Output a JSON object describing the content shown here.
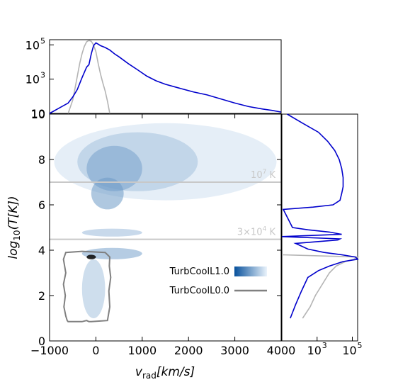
{
  "chart_data": [
    {
      "panel": "main",
      "type": "heatmap",
      "xlabel": "v_rad[km/s]",
      "ylabel": "log10(T[K])",
      "xlim": [
        -1000,
        4000
      ],
      "ylim": [
        0,
        10
      ],
      "xticks": [
        -1000,
        0,
        1000,
        2000,
        3000,
        4000
      ],
      "yticks": [
        0,
        2,
        4,
        6,
        8,
        10
      ],
      "xtick_labels": [
        "−1000",
        "0",
        "1000",
        "2000",
        "3000",
        "4000"
      ],
      "ytick_labels": [
        "0",
        "2",
        "4",
        "6",
        "8",
        "10"
      ],
      "reference_lines": [
        {
          "y": 7.0,
          "label_base": "10",
          "label_exp": "7",
          "label_unit": "K"
        },
        {
          "y": 4.48,
          "label_base": "3×10",
          "label_exp": "4",
          "label_unit": "K"
        }
      ],
      "density_regions": [
        {
          "x0": -900,
          "x1": 3900,
          "y0": 6.2,
          "y1": 9.6,
          "level": 0.12
        },
        {
          "x0": -400,
          "x1": 2200,
          "y0": 6.6,
          "y1": 9.2,
          "level": 0.3
        },
        {
          "x0": -200,
          "x1": 1000,
          "y0": 6.6,
          "y1": 8.6,
          "level": 0.5
        },
        {
          "x0": -100,
          "x1": 600,
          "y0": 5.8,
          "y1": 7.2,
          "level": 0.55
        },
        {
          "x0": -300,
          "x1": 1000,
          "y0": 4.6,
          "y1": 4.95,
          "level": 0.35
        },
        {
          "x0": -300,
          "x1": 1000,
          "y0": 3.6,
          "y1": 4.1,
          "level": 0.5
        },
        {
          "x0": -300,
          "x1": 200,
          "y0": 1.0,
          "y1": 3.6,
          "level": 0.3
        },
        {
          "x0": -200,
          "x1": 0,
          "y0": 3.6,
          "y1": 3.8,
          "level": 1.0
        }
      ],
      "contour": {
        "series": "TurbCoolL0.0",
        "color": "#808080",
        "x": [
          -700,
          -650,
          -700,
          -660,
          -690,
          -650,
          -620,
          -600,
          -300,
          -200,
          -150,
          -100,
          250,
          300,
          280,
          320,
          290,
          300,
          250,
          200,
          -300,
          -650,
          -700
        ],
        "y": [
          3.6,
          3.0,
          2.5,
          2.0,
          1.5,
          1.1,
          0.9,
          0.85,
          0.85,
          0.9,
          0.85,
          0.85,
          0.9,
          1.5,
          2.2,
          2.8,
          3.3,
          3.7,
          3.8,
          3.9,
          3.95,
          3.9,
          3.6
        ]
      },
      "legend": {
        "placement": "lower-right",
        "entries": [
          {
            "label": "TurbCoolL1.0",
            "kind": "colormap",
            "colors": [
              "#08519c",
              "#eaf3fb"
            ]
          },
          {
            "label": "TurbCoolL0.0",
            "kind": "line",
            "color": "#808080"
          }
        ]
      }
    },
    {
      "panel": "top",
      "type": "line",
      "scale": "log",
      "ylim": [
        10,
        200000
      ],
      "yticks": [
        10,
        1000,
        100000
      ],
      "ytick_labels": [
        {
          "base": "10",
          "exp": ""
        },
        {
          "base": "10",
          "exp": "3"
        },
        {
          "base": "10",
          "exp": "5"
        }
      ],
      "xlim": [
        -1000,
        4000
      ],
      "series": [
        {
          "name": "TurbCoolL1.0",
          "color": "#0000cc",
          "x": [
            -1000,
            -800,
            -600,
            -500,
            -400,
            -300,
            -200,
            -150,
            -100,
            -50,
            0,
            50,
            100,
            200,
            300,
            400,
            500,
            700,
            900,
            1100,
            1300,
            1500,
            1800,
            2100,
            2400,
            2700,
            3000,
            3300,
            3600,
            3800,
            4000
          ],
          "y": [
            10,
            20,
            40,
            90,
            250,
            1200,
            5000,
            7000,
            30000,
            90000,
            130000,
            110000,
            90000,
            70000,
            50000,
            30000,
            20000,
            8000,
            3500,
            1500,
            800,
            500,
            300,
            180,
            120,
            70,
            40,
            25,
            18,
            15,
            12
          ]
        },
        {
          "name": "TurbCoolL0.0",
          "color": "#b4b4b4",
          "x": [
            -600,
            -500,
            -450,
            -400,
            -350,
            -300,
            -250,
            -200,
            -150,
            -100,
            -50,
            0,
            50,
            100,
            150,
            200,
            250,
            300
          ],
          "y": [
            10,
            60,
            300,
            1500,
            8000,
            30000,
            80000,
            150000,
            180000,
            160000,
            100000,
            40000,
            8000,
            2000,
            600,
            200,
            50,
            10
          ]
        }
      ]
    },
    {
      "panel": "right",
      "type": "line",
      "scale": "log",
      "xlim": [
        10,
        200000
      ],
      "xticks": [
        1000,
        100000
      ],
      "xtick_labels": [
        {
          "base": "10",
          "exp": "3"
        },
        {
          "base": "10",
          "exp": "5"
        }
      ],
      "ylim": [
        0,
        10
      ],
      "series": [
        {
          "name": "TurbCoolL1.0",
          "color": "#0000cc",
          "y": [
            1.0,
            1.6,
            2.2,
            2.8,
            3.1,
            3.3,
            3.5,
            3.6,
            3.7,
            3.75,
            3.8,
            3.9,
            4.05,
            4.3,
            4.45,
            4.5,
            4.6,
            4.7,
            4.8,
            4.9,
            5.0,
            5.8,
            5.9,
            6.0,
            6.2,
            6.5,
            6.8,
            7.2,
            7.6,
            8.0,
            8.4,
            8.8,
            9.2,
            9.6,
            10.0
          ],
          "x": [
            30,
            60,
            130,
            300,
            1200,
            5000,
            30000,
            200000,
            150000,
            60000,
            25000,
            2500,
            300,
            60,
            15000,
            20000,
            10,
            25000,
            5000,
            300,
            40,
            12,
            600,
            8000,
            20000,
            25000,
            30000,
            30000,
            25000,
            18000,
            10000,
            4000,
            1200,
            150,
            20
          ]
        },
        {
          "name": "TurbCoolL0.0",
          "color": "#b4b4b4",
          "y": [
            1.0,
            1.5,
            2.0,
            2.5,
            3.0,
            3.3,
            3.5,
            3.6,
            3.7,
            3.8
          ],
          "x": [
            150,
            400,
            800,
            2000,
            5000,
            12000,
            40000,
            120000,
            200000,
            10
          ]
        }
      ]
    }
  ]
}
